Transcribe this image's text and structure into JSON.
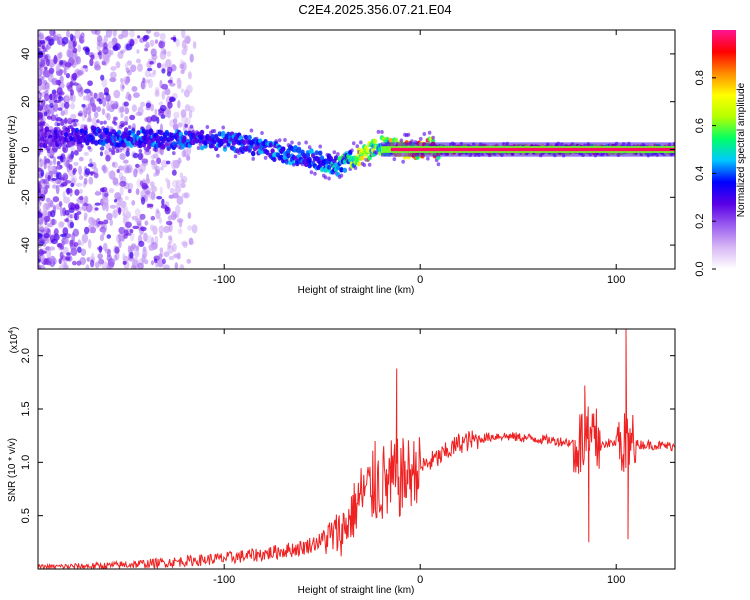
{
  "title": "C2E4.2025.356.07.21.E04",
  "chart_data": [
    {
      "type": "heatmap",
      "xlabel": "Height of straight line (km)",
      "ylabel": "Frequency (Hz)",
      "xlim": [
        -195,
        130
      ],
      "ylim": [
        -50,
        50
      ],
      "xticks": [
        -100,
        0,
        100
      ],
      "xtick_labels": [
        "-100",
        "0",
        "100"
      ],
      "yticks": [
        -40,
        -20,
        0,
        20,
        40
      ],
      "ytick_labels": [
        "-40",
        "-20",
        "0",
        "20",
        "40"
      ],
      "colorbar": {
        "label": "Normalized spectral amplitude",
        "range": [
          0,
          1
        ],
        "ticks": [
          0.0,
          0.2,
          0.4,
          0.6,
          0.8
        ],
        "tick_labels": [
          "0.0",
          "0.2",
          "0.4",
          "0.6",
          "0.8"
        ],
        "colors": [
          "#ffffff",
          "#d8b8f5",
          "#9b5ef0",
          "#5a00e6",
          "#0000ff",
          "#00c8ff",
          "#00ff64",
          "#b4ff00",
          "#ffff00",
          "#ff8c00",
          "#ff0000",
          "#ff1493"
        ]
      },
      "ridge": {
        "x": [
          -195,
          -170,
          -150,
          -130,
          -110,
          -95,
          -80,
          -70,
          -60,
          -50,
          -42,
          -36,
          -32,
          -28,
          -24,
          -20,
          -15,
          -10,
          -5,
          0,
          5,
          10,
          20,
          40,
          60,
          80,
          100,
          105,
          110,
          130
        ],
        "y": [
          5,
          6,
          5,
          4,
          4,
          3,
          1,
          -2,
          -3,
          -5,
          -7,
          -4,
          -3,
          -2,
          0,
          2,
          1,
          0,
          0,
          0,
          1,
          0,
          0,
          0,
          0,
          0,
          0,
          0,
          0,
          0
        ],
        "amplitude": [
          0.3,
          0.4,
          0.45,
          0.45,
          0.45,
          0.45,
          0.45,
          0.5,
          0.45,
          0.5,
          0.55,
          0.6,
          0.8,
          0.8,
          0.7,
          0.6,
          0.85,
          0.95,
          0.95,
          0.95,
          0.95,
          0.95,
          0.95,
          0.95,
          0.95,
          0.95,
          0.95,
          0.8,
          0.95,
          0.95
        ]
      }
    },
    {
      "type": "line",
      "series": [
        {
          "name": "SNR",
          "color": "#ee2222"
        }
      ],
      "xlabel": "Height of straight line (km)",
      "ylabel": "SNR (10 * v/v)",
      "y_scale_label": "(x10",
      "y_scale_exp": "4",
      "xlim": [
        -195,
        130
      ],
      "ylim": [
        0,
        2.25
      ],
      "xticks": [
        -100,
        0,
        100
      ],
      "xtick_labels": [
        "-100",
        "0",
        "100"
      ],
      "yticks": [
        0.5,
        1.0,
        1.5,
        2.0
      ],
      "ytick_labels": [
        "0.5",
        "1.0",
        "1.5",
        "2.0"
      ],
      "trend": {
        "x": [
          -195,
          -160,
          -130,
          -100,
          -80,
          -60,
          -50,
          -40,
          -35,
          -30,
          -25,
          -20,
          -15,
          -10,
          -5,
          0,
          10,
          20,
          30,
          40,
          60,
          80,
          100,
          130
        ],
        "y": [
          0.02,
          0.03,
          0.06,
          0.1,
          0.14,
          0.2,
          0.27,
          0.35,
          0.5,
          0.7,
          0.75,
          0.8,
          0.8,
          0.85,
          0.9,
          0.95,
          1.05,
          1.18,
          1.22,
          1.25,
          1.22,
          1.18,
          1.18,
          1.15
        ]
      },
      "spikes": [
        {
          "x": -12,
          "y": 1.88
        },
        {
          "x": -23,
          "y": 1.2
        },
        {
          "x": 84,
          "y": 1.72
        },
        {
          "x": 86,
          "y": 0.25
        },
        {
          "x": 105,
          "y": 2.25
        },
        {
          "x": 106,
          "y": 0.28
        }
      ]
    }
  ]
}
